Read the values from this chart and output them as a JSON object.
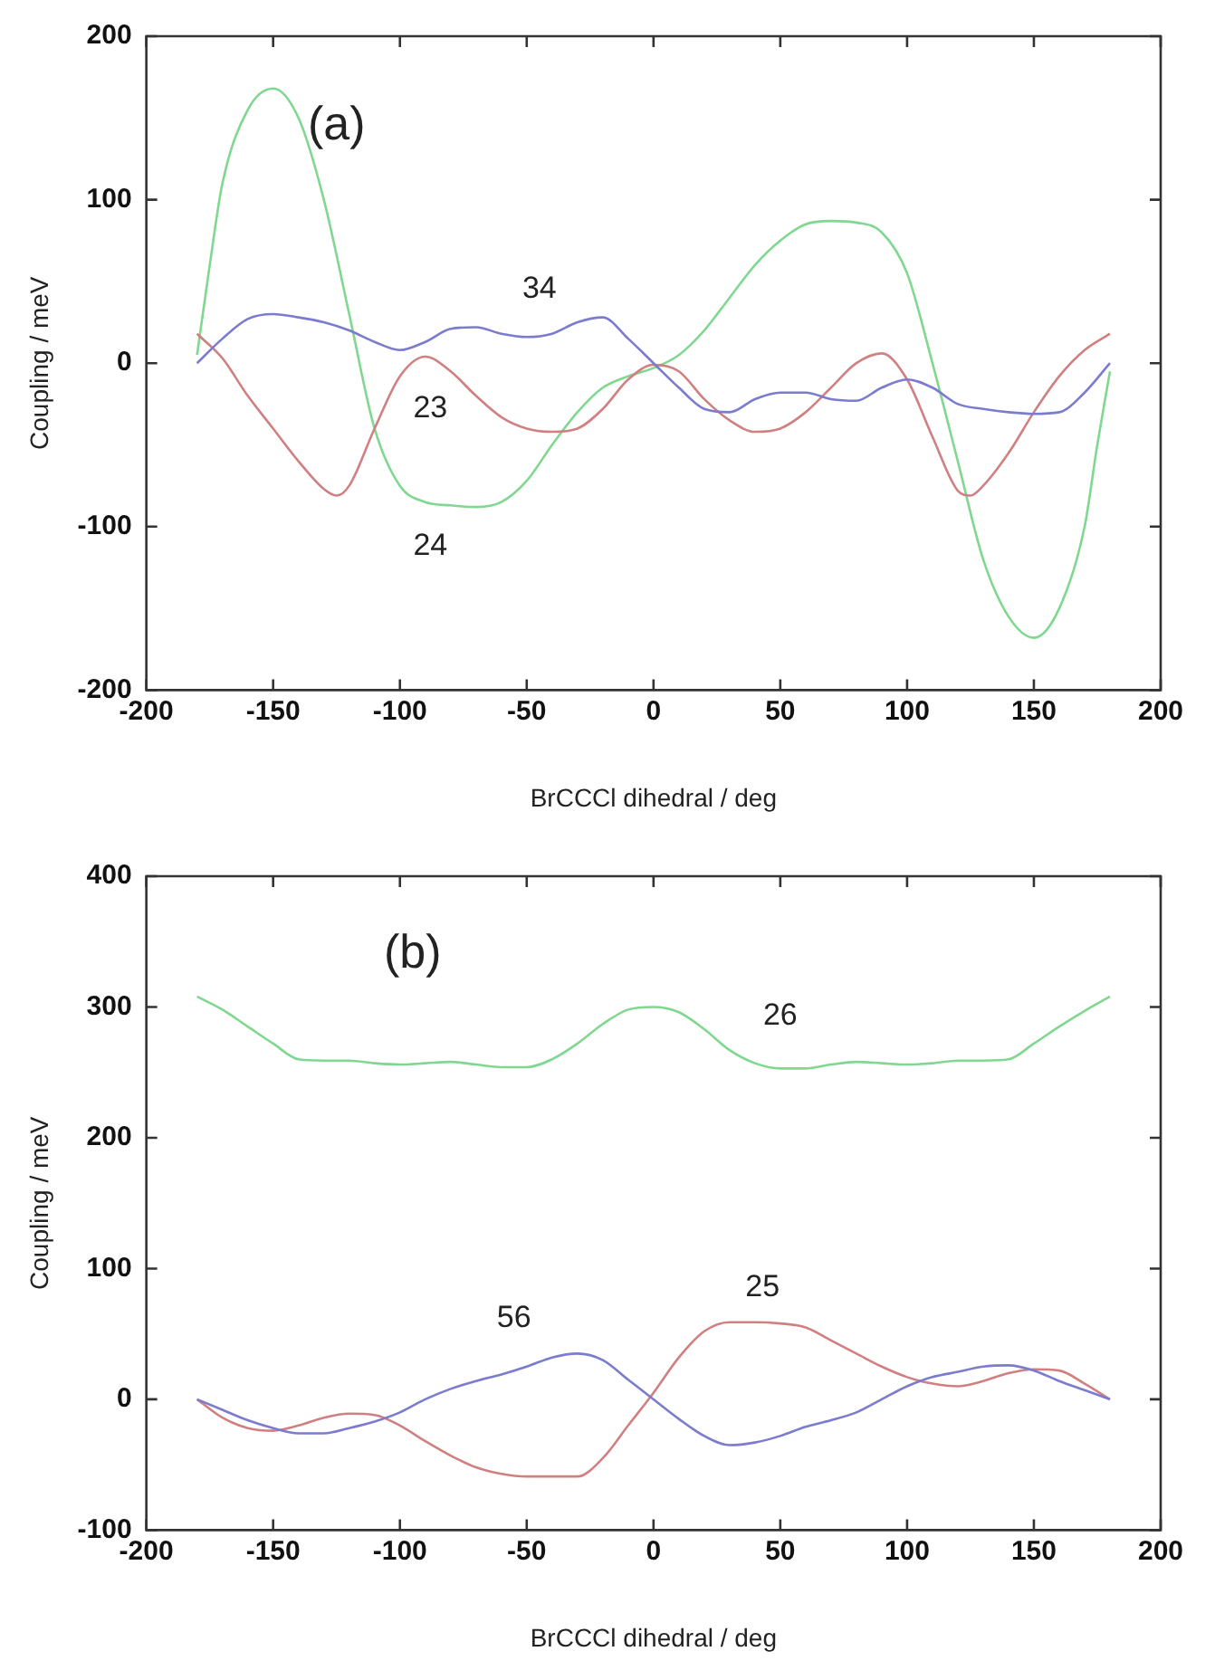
{
  "chart_data": [
    {
      "type": "line",
      "xlabel": "BrCCCl dihedral / deg",
      "ylabel": "Coupling / meV",
      "xlim": [
        -200,
        200
      ],
      "xticks": [
        -200,
        -150,
        -100,
        -50,
        0,
        50,
        100,
        150,
        200
      ],
      "ylim": [
        -200,
        200
      ],
      "yticks": [
        -200,
        -100,
        0,
        100,
        200
      ],
      "grid": false,
      "legend": false,
      "marker": "none",
      "line_style": "solid",
      "annotations": [
        "(a)"
      ],
      "series": [
        {
          "name": "34",
          "color": "#7b7bd0",
          "x": [
            -180,
            -170,
            -160,
            -150,
            -140,
            -130,
            -120,
            -110,
            -100,
            -90,
            -80,
            -70,
            -60,
            -50,
            -40,
            -30,
            -20,
            -10,
            0,
            10,
            20,
            30,
            40,
            50,
            60,
            70,
            80,
            90,
            100,
            110,
            120,
            130,
            140,
            150,
            160,
            170,
            180
          ],
          "values": [
            0,
            15,
            27,
            30,
            28,
            25,
            20,
            13,
            8,
            13,
            21,
            22,
            18,
            16,
            18,
            25,
            28,
            15,
            0,
            -15,
            -28,
            -30,
            -22,
            -18,
            -18,
            -22,
            -23,
            -15,
            -10,
            -15,
            -25,
            -28,
            -30,
            -31,
            -30,
            -18,
            0
          ]
        },
        {
          "name": "23",
          "color": "#d08080",
          "x": [
            -180,
            -170,
            -160,
            -150,
            -140,
            -130,
            -125,
            -120,
            -110,
            -100,
            -90,
            -80,
            -70,
            -60,
            -50,
            -40,
            -30,
            -20,
            -10,
            0,
            10,
            20,
            30,
            40,
            50,
            60,
            70,
            80,
            90,
            100,
            110,
            120,
            125,
            130,
            140,
            150,
            160,
            170,
            180
          ],
          "values": [
            18,
            3,
            -20,
            -40,
            -60,
            -77,
            -81,
            -75,
            -40,
            -8,
            4,
            -5,
            -20,
            -33,
            -40,
            -42,
            -40,
            -28,
            -10,
            -1,
            -5,
            -22,
            -35,
            -42,
            -40,
            -30,
            -15,
            0,
            6,
            -10,
            -45,
            -78,
            -81,
            -75,
            -55,
            -30,
            -8,
            8,
            18
          ]
        },
        {
          "name": "24",
          "color": "#80d890",
          "x": [
            -180,
            -175,
            -170,
            -160,
            -150,
            -140,
            -130,
            -120,
            -110,
            -100,
            -90,
            -80,
            -70,
            -60,
            -50,
            -40,
            -30,
            -20,
            -10,
            0,
            10,
            20,
            30,
            40,
            50,
            60,
            70,
            80,
            90,
            100,
            110,
            120,
            130,
            140,
            150,
            160,
            170,
            175,
            180
          ],
          "values": [
            5,
            60,
            110,
            155,
            168,
            150,
            100,
            30,
            -40,
            -75,
            -85,
            -87,
            -88,
            -85,
            -72,
            -50,
            -30,
            -15,
            -8,
            -3,
            5,
            20,
            40,
            60,
            75,
            85,
            87,
            86,
            80,
            55,
            0,
            -60,
            -120,
            -155,
            -168,
            -150,
            -100,
            -50,
            -5
          ]
        }
      ]
    },
    {
      "type": "line",
      "xlabel": "BrCCCl dihedral / deg",
      "ylabel": "Coupling / meV",
      "xlim": [
        -200,
        200
      ],
      "xticks": [
        -200,
        -150,
        -100,
        -50,
        0,
        50,
        100,
        150,
        200
      ],
      "ylim": [
        -100,
        400
      ],
      "yticks": [
        -100,
        0,
        100,
        200,
        300,
        400
      ],
      "grid": false,
      "legend": false,
      "marker": "none",
      "line_style": "solid",
      "annotations": [
        "(b)"
      ],
      "series": [
        {
          "name": "26",
          "color": "#80d890",
          "x": [
            -180,
            -170,
            -160,
            -150,
            -140,
            -130,
            -120,
            -110,
            -100,
            -90,
            -80,
            -70,
            -60,
            -50,
            -40,
            -30,
            -20,
            -10,
            0,
            10,
            20,
            30,
            40,
            50,
            60,
            70,
            80,
            90,
            100,
            110,
            120,
            130,
            140,
            150,
            160,
            170,
            180
          ],
          "values": [
            308,
            298,
            285,
            272,
            260,
            259,
            259,
            257,
            256,
            257,
            258,
            256,
            254,
            254,
            260,
            272,
            287,
            298,
            300,
            296,
            283,
            267,
            257,
            253,
            253,
            256,
            258,
            257,
            256,
            257,
            259,
            259,
            260,
            272,
            285,
            297,
            308
          ]
        },
        {
          "name": "56",
          "color": "#7b7bd0",
          "x": [
            -180,
            -170,
            -160,
            -150,
            -140,
            -130,
            -120,
            -110,
            -100,
            -90,
            -80,
            -70,
            -60,
            -50,
            -40,
            -30,
            -20,
            -10,
            0,
            10,
            20,
            30,
            40,
            50,
            60,
            70,
            80,
            90,
            100,
            110,
            120,
            130,
            140,
            150,
            160,
            170,
            180
          ],
          "values": [
            0,
            -8,
            -16,
            -22,
            -26,
            -26,
            -22,
            -17,
            -10,
            0,
            8,
            14,
            19,
            25,
            32,
            35,
            30,
            15,
            0,
            -15,
            -28,
            -35,
            -33,
            -28,
            -21,
            -16,
            -10,
            0,
            10,
            17,
            21,
            25,
            26,
            22,
            14,
            7,
            0
          ]
        },
        {
          "name": "25",
          "color": "#d08080",
          "x": [
            -180,
            -170,
            -160,
            -150,
            -140,
            -130,
            -120,
            -110,
            -100,
            -90,
            -80,
            -70,
            -60,
            -50,
            -40,
            -30,
            -20,
            -10,
            0,
            10,
            20,
            30,
            40,
            50,
            60,
            70,
            80,
            90,
            100,
            110,
            120,
            130,
            140,
            150,
            160,
            170,
            180
          ],
          "values": [
            0,
            -14,
            -22,
            -24,
            -20,
            -14,
            -11,
            -12,
            -20,
            -32,
            -43,
            -52,
            -57,
            -59,
            -59,
            -59,
            -45,
            -20,
            5,
            32,
            52,
            59,
            59,
            58,
            55,
            45,
            35,
            25,
            17,
            12,
            10,
            14,
            20,
            23,
            22,
            12,
            0
          ]
        }
      ]
    }
  ]
}
